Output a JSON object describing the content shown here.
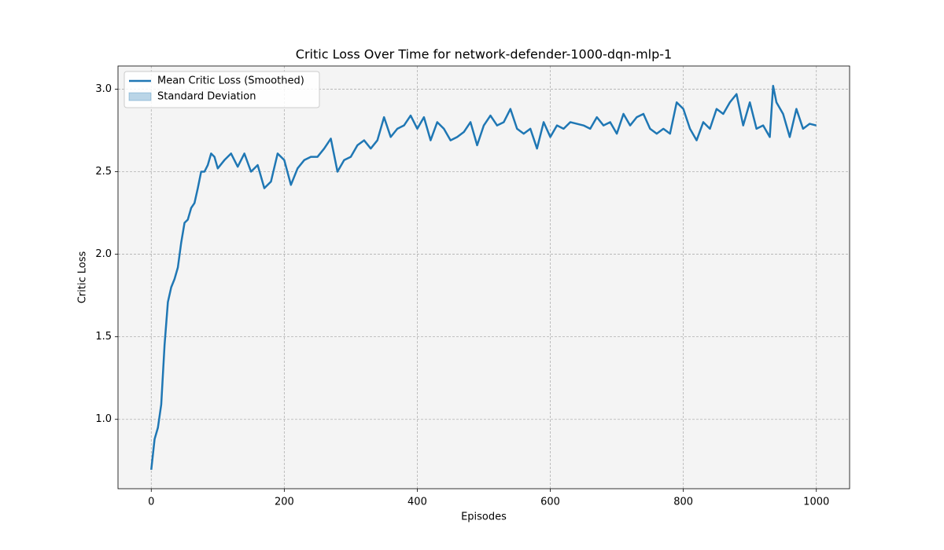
{
  "chart_data": {
    "type": "line",
    "title": "Critic Loss Over Time for network-defender-1000-dqn-mlp-1",
    "x_label": "Episodes",
    "y_label": "Critic Loss",
    "x": [
      0,
      5,
      10,
      15,
      20,
      25,
      30,
      35,
      40,
      45,
      50,
      55,
      60,
      65,
      70,
      75,
      80,
      85,
      90,
      95,
      100,
      110,
      120,
      130,
      140,
      150,
      160,
      170,
      180,
      190,
      200,
      210,
      220,
      230,
      240,
      250,
      260,
      270,
      280,
      290,
      300,
      310,
      320,
      330,
      340,
      350,
      360,
      370,
      380,
      390,
      400,
      410,
      420,
      430,
      440,
      450,
      460,
      470,
      480,
      490,
      500,
      510,
      520,
      530,
      540,
      550,
      560,
      570,
      580,
      590,
      600,
      610,
      620,
      630,
      640,
      650,
      660,
      670,
      680,
      690,
      700,
      710,
      720,
      730,
      740,
      750,
      760,
      770,
      780,
      790,
      800,
      810,
      820,
      830,
      840,
      850,
      860,
      870,
      880,
      890,
      900,
      910,
      920,
      930,
      935,
      940,
      950,
      960,
      970,
      980,
      990,
      1000
    ],
    "series": [
      {
        "name": "Mean Critic Loss (Smoothed)",
        "color": "#1f77b4",
        "values": [
          0.695,
          0.88,
          0.95,
          1.09,
          1.45,
          1.71,
          1.8,
          1.85,
          1.92,
          2.07,
          2.19,
          2.21,
          2.28,
          2.31,
          2.4,
          2.5,
          2.5,
          2.54,
          2.61,
          2.59,
          2.52,
          2.57,
          2.61,
          2.53,
          2.61,
          2.5,
          2.54,
          2.4,
          2.44,
          2.61,
          2.57,
          2.42,
          2.52,
          2.57,
          2.59,
          2.59,
          2.64,
          2.7,
          2.5,
          2.57,
          2.59,
          2.66,
          2.69,
          2.64,
          2.69,
          2.83,
          2.71,
          2.76,
          2.78,
          2.84,
          2.76,
          2.83,
          2.69,
          2.8,
          2.76,
          2.69,
          2.71,
          2.74,
          2.8,
          2.66,
          2.78,
          2.84,
          2.78,
          2.8,
          2.88,
          2.76,
          2.73,
          2.76,
          2.64,
          2.8,
          2.71,
          2.78,
          2.76,
          2.8,
          2.79,
          2.78,
          2.76,
          2.83,
          2.78,
          2.8,
          2.73,
          2.85,
          2.78,
          2.83,
          2.85,
          2.76,
          2.73,
          2.76,
          2.73,
          2.92,
          2.88,
          2.76,
          2.69,
          2.8,
          2.76,
          2.88,
          2.85,
          2.92,
          2.97,
          2.78,
          2.92,
          2.76,
          2.78,
          2.71,
          3.02,
          2.92,
          2.85,
          2.71,
          2.88,
          2.76,
          2.79,
          2.78
        ]
      }
    ],
    "band": {
      "name": "Standard Deviation",
      "color": "#1f77b4"
    },
    "xlim": [
      -50,
      1050
    ],
    "ylim": [
      0.58,
      3.14
    ],
    "xticks": [
      0,
      200,
      400,
      600,
      800,
      1000
    ],
    "yticks": [
      {
        "value": 1,
        "label": "1.0"
      },
      1.5,
      {
        "value": 2,
        "label": "2.0"
      },
      2.5,
      {
        "value": 3,
        "label": "3.0"
      }
    ],
    "grid": true,
    "legend": "upper left"
  }
}
